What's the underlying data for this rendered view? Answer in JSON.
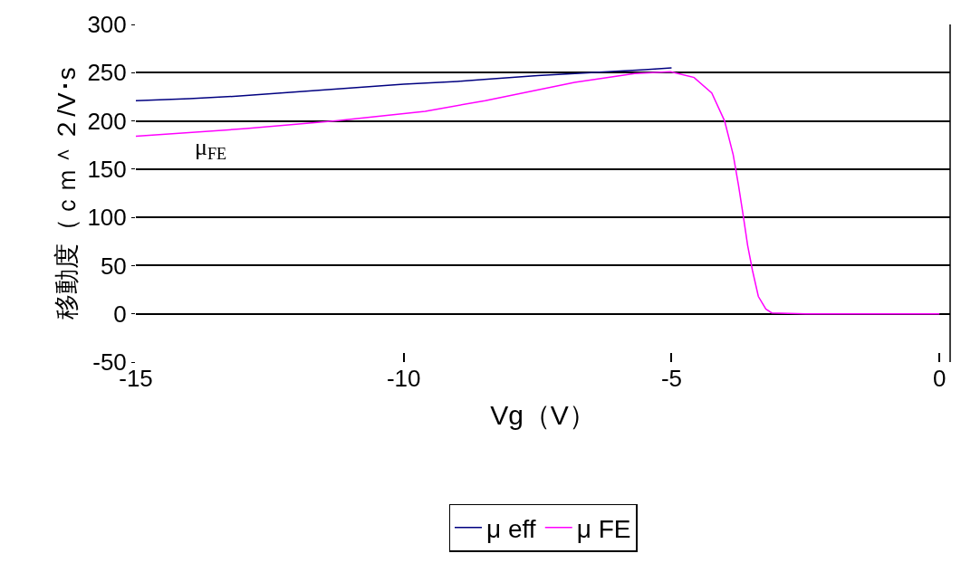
{
  "chart_data": {
    "type": "line",
    "xlabel": "Vg（V）",
    "ylabel": "移動度（ｃｍ＾２/V･s",
    "xlim": [
      -15,
      0.2
    ],
    "xticks": [
      -15,
      -10,
      -5,
      0
    ],
    "ylim": [
      -50,
      300
    ],
    "yticks": [
      -50,
      0,
      50,
      100,
      150,
      200,
      250,
      300
    ],
    "grid": "y",
    "legend": "bottom",
    "marker": "none",
    "line_style": "solid",
    "annotations": [
      "μ$_{FE}$"
    ],
    "series": [
      {
        "name": "μ eff",
        "color": "#000080",
        "x": [
          -15,
          -14,
          -13,
          -12,
          -11,
          -10,
          -9,
          -8.5,
          -7.5,
          -6.5,
          -5.5,
          -5
        ],
        "values": [
          221,
          223,
          226,
          230,
          234,
          238,
          241,
          243,
          247,
          250,
          253,
          255
        ]
      },
      {
        "name": "μ FE",
        "color": "#ff00ff",
        "x": [
          -15,
          -12.94,
          -11.27,
          -9.6,
          -8.48,
          -6.81,
          -5.69,
          -5.02,
          -4.58,
          -4.25,
          -4.01,
          -3.85,
          -3.75,
          -3.66,
          -3.58,
          -3.49,
          -3.38,
          -3.24,
          -3.13,
          -2.5,
          -1.5,
          -0.5,
          0
        ],
        "values": [
          184,
          192,
          200,
          210,
          221,
          240,
          249,
          251,
          245,
          229,
          200,
          165,
          133,
          101,
          71,
          45,
          18,
          5,
          1,
          0,
          0,
          0,
          0
        ]
      }
    ]
  }
}
